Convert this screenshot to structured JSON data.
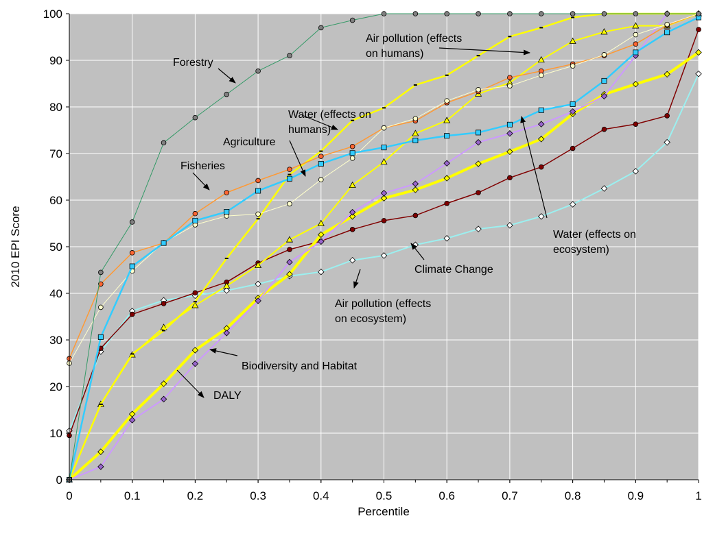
{
  "chart_data": {
    "type": "line",
    "xlabel": "Percentile",
    "ylabel": "2010 EPI Score",
    "xlim": [
      0,
      1
    ],
    "ylim": [
      0,
      100
    ],
    "x_ticks": [
      "0",
      "0.1",
      "0.2",
      "0.3",
      "0.4",
      "0.5",
      "0.6",
      "0.7",
      "0.8",
      "0.9",
      "1"
    ],
    "y_ticks": [
      "0",
      "10",
      "20",
      "30",
      "40",
      "50",
      "60",
      "70",
      "80",
      "90",
      "100"
    ],
    "grid": true,
    "plot_background": "#c0c0c0",
    "gridline_color": "#ffffff",
    "x": [
      0,
      0.05,
      0.1,
      0.15,
      0.2,
      0.25,
      0.3,
      0.35,
      0.4,
      0.45,
      0.5,
      0.55,
      0.6,
      0.65,
      0.7,
      0.75,
      0.8,
      0.85,
      0.9,
      0.95,
      1
    ],
    "series": [
      {
        "color": "#9bf0f0",
        "marker": "diamond",
        "marker_fill": "#ffffff",
        "line_width": 2,
        "values": [
          10.5,
          27.5,
          36.2,
          38.5,
          39.5,
          40.6,
          42,
          43.7,
          44.6,
          47.1,
          48.1,
          50.4,
          51.8,
          53.8,
          54.6,
          56.5,
          59.1,
          62.5,
          66.2,
          72.4,
          87.1
        ]
      },
      {
        "color": "#800000",
        "marker": "circle",
        "marker_fill": "#800000",
        "line_width": 1.5,
        "values": [
          9.5,
          28.2,
          35.5,
          37.8,
          40.1,
          42.4,
          46.5,
          49.4,
          51.2,
          53.7,
          55.6,
          56.7,
          59.3,
          61.6,
          64.8,
          67.1,
          71.1,
          75.2,
          76.3,
          78.1,
          96.6
        ]
      },
      {
        "color": "#ffff00",
        "marker": "diamond",
        "marker_fill": "#ffff00",
        "line_width": 4,
        "values": [
          0,
          6,
          14.1,
          20.6,
          27.8,
          32.5,
          39,
          44.1,
          52.6,
          56.5,
          60.4,
          62.2,
          64.7,
          67.8,
          70.4,
          73.1,
          78.5,
          82.7,
          84.9,
          87,
          91.7
        ]
      },
      {
        "color": "#cc99ff",
        "marker": "diamond",
        "marker_fill": "#9966cc",
        "line_width": 2,
        "values": [
          0,
          2.8,
          12.8,
          17.3,
          24.9,
          31.5,
          38.4,
          46.7,
          51.1,
          57.4,
          61.5,
          63.5,
          67.9,
          72.4,
          74.3,
          76.3,
          79,
          82.3,
          91,
          100,
          100
        ]
      },
      {
        "color": "#ffff00",
        "marker": "triangle",
        "marker_fill": "#ffff00",
        "line_width": 2,
        "values": [
          0,
          16.2,
          26.8,
          32.7,
          37.4,
          41.6,
          46,
          51.5,
          55,
          63.2,
          68.2,
          74.3,
          77.1,
          82.8,
          85.2,
          90.1,
          94.1,
          96.1,
          97.4,
          97.4,
          100
        ]
      },
      {
        "color": "#ffff00",
        "marker": "dash",
        "marker_fill": "#000000",
        "line_width": 2.5,
        "values": [
          0,
          16.2,
          27,
          32,
          38.2,
          47.5,
          56,
          65.5,
          70.5,
          77.1,
          79.8,
          84.7,
          86.8,
          91,
          95.1,
          97,
          99.2,
          100,
          100,
          100,
          100
        ]
      },
      {
        "color": "#ff9933",
        "marker": "circle",
        "marker_fill": "#ff6633",
        "line_width": 1.5,
        "values": [
          26,
          42,
          48.7,
          50.8,
          57.1,
          61.6,
          64.2,
          66.6,
          69.4,
          71.5,
          75.5,
          77,
          80.9,
          83.3,
          86.3,
          87.7,
          89.2,
          91,
          93.5,
          97.5,
          100
        ]
      },
      {
        "color": "#ffffcc",
        "marker": "circle",
        "marker_fill": "#ffffcc",
        "line_width": 1,
        "values": [
          25,
          37,
          44.8,
          50.9,
          54.7,
          56.6,
          57,
          59.2,
          64.4,
          69,
          75.5,
          77.5,
          81.3,
          83.7,
          84.5,
          86.8,
          88.8,
          91.2,
          95.5,
          97.7,
          100
        ]
      },
      {
        "color": "#33ccff",
        "marker": "square",
        "marker_fill": "#33ccff",
        "line_width": 2.5,
        "values": [
          0,
          30.6,
          45.8,
          50.8,
          55.6,
          57.5,
          62,
          64.6,
          67.8,
          70.1,
          71.3,
          72.8,
          73.8,
          74.5,
          76.2,
          79.3,
          80.6,
          85.6,
          91.7,
          96,
          99.2
        ]
      },
      {
        "color": "#339966",
        "marker": "circle",
        "marker_fill": "#808080",
        "line_width": 1,
        "values": [
          0,
          44.5,
          55.3,
          72.3,
          77.7,
          82.7,
          87.7,
          91,
          97,
          98.6,
          100,
          100,
          100,
          100,
          100,
          100,
          100,
          100,
          100,
          100,
          100
        ]
      }
    ],
    "annotations": [
      {
        "text": "Forestry"
      },
      {
        "text": "Air pollution (effects"
      },
      {
        "text": "on humans)"
      },
      {
        "text": "Water (effects on"
      },
      {
        "text": "humans)"
      },
      {
        "text": "Agriculture"
      },
      {
        "text": "Fisheries"
      },
      {
        "text": "Water (effects on"
      },
      {
        "text": "ecosystem)"
      },
      {
        "text": "Climate Change"
      },
      {
        "text": "Air pollution (effects"
      },
      {
        "text": "on ecosystem)"
      },
      {
        "text": "Biodiversity and Habitat"
      },
      {
        "text": "DALY"
      }
    ]
  }
}
